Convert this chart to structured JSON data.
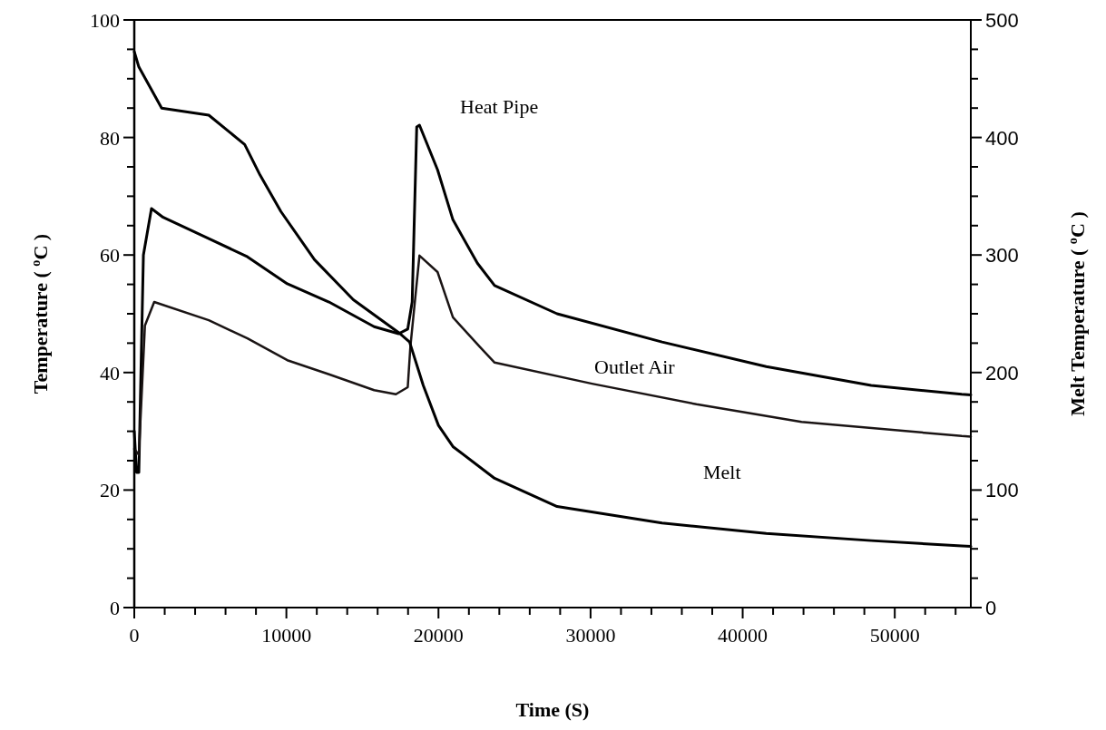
{
  "chart_data": {
    "type": "line",
    "xlabel": "Time (S)",
    "ylabel": "Temperature ( $^{o}$C )",
    "y2label": "Melt Temperature ( $^{o}$C )",
    "xlim": [
      0,
      55000
    ],
    "ylim": [
      0,
      100
    ],
    "y2lim": [
      0,
      500
    ],
    "xticks": [
      0,
      {
        "value": 2000,
        "label": null
      },
      {
        "value": 4000,
        "label": null
      },
      {
        "value": 6000,
        "label": null
      },
      {
        "value": 8000,
        "label": null
      },
      10000,
      {
        "value": 12000,
        "label": null
      },
      {
        "value": 14000,
        "label": null
      },
      {
        "value": 16000,
        "label": null
      },
      {
        "value": 18000,
        "label": null
      },
      20000,
      {
        "value": 22000,
        "label": null
      },
      {
        "value": 24000,
        "label": null
      },
      {
        "value": 26000,
        "label": null
      },
      {
        "value": 28000,
        "label": null
      },
      30000,
      {
        "value": 32000,
        "label": null
      },
      {
        "value": 34000,
        "label": null
      },
      {
        "value": 36000,
        "label": null
      },
      {
        "value": 38000,
        "label": null
      },
      40000,
      {
        "value": 42000,
        "label": null
      },
      {
        "value": 44000,
        "label": null
      },
      {
        "value": 46000,
        "label": null
      },
      {
        "value": 48000,
        "label": null
      },
      50000,
      {
        "value": 52000,
        "label": null
      },
      {
        "value": 54000,
        "label": null
      }
    ],
    "yticks": [
      0,
      {
        "value": 5,
        "label": null
      },
      {
        "value": 10,
        "label": null
      },
      {
        "value": 15,
        "label": null
      },
      20,
      {
        "value": 25,
        "label": null
      },
      {
        "value": 30,
        "label": null
      },
      {
        "value": 35,
        "label": null
      },
      40,
      {
        "value": 45,
        "label": null
      },
      {
        "value": 50,
        "label": null
      },
      {
        "value": 55,
        "label": null
      },
      60,
      {
        "value": 65,
        "label": null
      },
      {
        "value": 70,
        "label": null
      },
      {
        "value": 75,
        "label": null
      },
      80,
      {
        "value": 85,
        "label": null
      },
      {
        "value": 90,
        "label": null
      },
      {
        "value": 95,
        "label": null
      },
      100
    ],
    "y2ticks": [
      0,
      {
        "value": 25,
        "label": null
      },
      {
        "value": 50,
        "label": null
      },
      {
        "value": 75,
        "label": null
      },
      100,
      {
        "value": 125,
        "label": null
      },
      {
        "value": 150,
        "label": null
      },
      {
        "value": 175,
        "label": null
      },
      200,
      {
        "value": 225,
        "label": null
      },
      {
        "value": 250,
        "label": null
      },
      {
        "value": 275,
        "label": null
      },
      300,
      {
        "value": 325,
        "label": null
      },
      {
        "value": 350,
        "label": null
      },
      {
        "value": 375,
        "label": null
      },
      400,
      {
        "value": 425,
        "label": null
      },
      {
        "value": 450,
        "label": null
      },
      {
        "value": 475,
        "label": null
      },
      500
    ],
    "grid": false,
    "marker": "none",
    "line_style": "solid",
    "series": [
      {
        "name": "Heat Pipe",
        "color": "#000000",
        "x": [
          0,
          150,
          300,
          600,
          1130,
          1900,
          4900,
          7440,
          10060,
          12800,
          15770,
          17380,
          17980,
          18270,
          18570,
          18750,
          19940,
          20950,
          22560,
          23690,
          27800,
          34700,
          41550,
          48450,
          54400,
          55000
        ],
        "values": [
          30,
          23,
          23,
          60,
          67.9,
          66.4,
          62.8,
          59.7,
          55.1,
          52,
          47.8,
          46.6,
          47.4,
          52,
          81.8,
          82.1,
          74.5,
          66,
          58.6,
          54.8,
          50,
          45.2,
          41,
          37.8,
          36.3,
          36.2
        ]
      },
      {
        "name": "Outlet Air",
        "color": "#1a1414",
        "x": [
          0,
          300,
          700,
          1310,
          4900,
          7440,
          10060,
          12800,
          15770,
          17200,
          17980,
          18150,
          18750,
          19940,
          20950,
          22740,
          23690,
          30100,
          36960,
          43870,
          54400,
          55000
        ],
        "values": [
          27,
          26,
          48,
          52,
          48.9,
          45.8,
          42.1,
          39.7,
          37,
          36.3,
          37.5,
          44.3,
          59.9,
          57.1,
          49.4,
          44.3,
          41.7,
          38.1,
          34.6,
          31.6,
          29.2,
          29.1
        ]
      },
      {
        "name": "Melt",
        "color": "#000000",
        "axis": "y2",
        "x": [
          0,
          300,
          1800,
          4900,
          7260,
          8270,
          9640,
          11850,
          14400,
          17380,
          18100,
          19000,
          20000,
          20950,
          23690,
          27800,
          34700,
          41550,
          48450,
          54400,
          55000
        ],
        "values": [
          473,
          460,
          425,
          419,
          394,
          368,
          337,
          296,
          262,
          234,
          226,
          189,
          155,
          137,
          110,
          86,
          72,
          63,
          57,
          52.5,
          52
        ]
      }
    ]
  }
}
